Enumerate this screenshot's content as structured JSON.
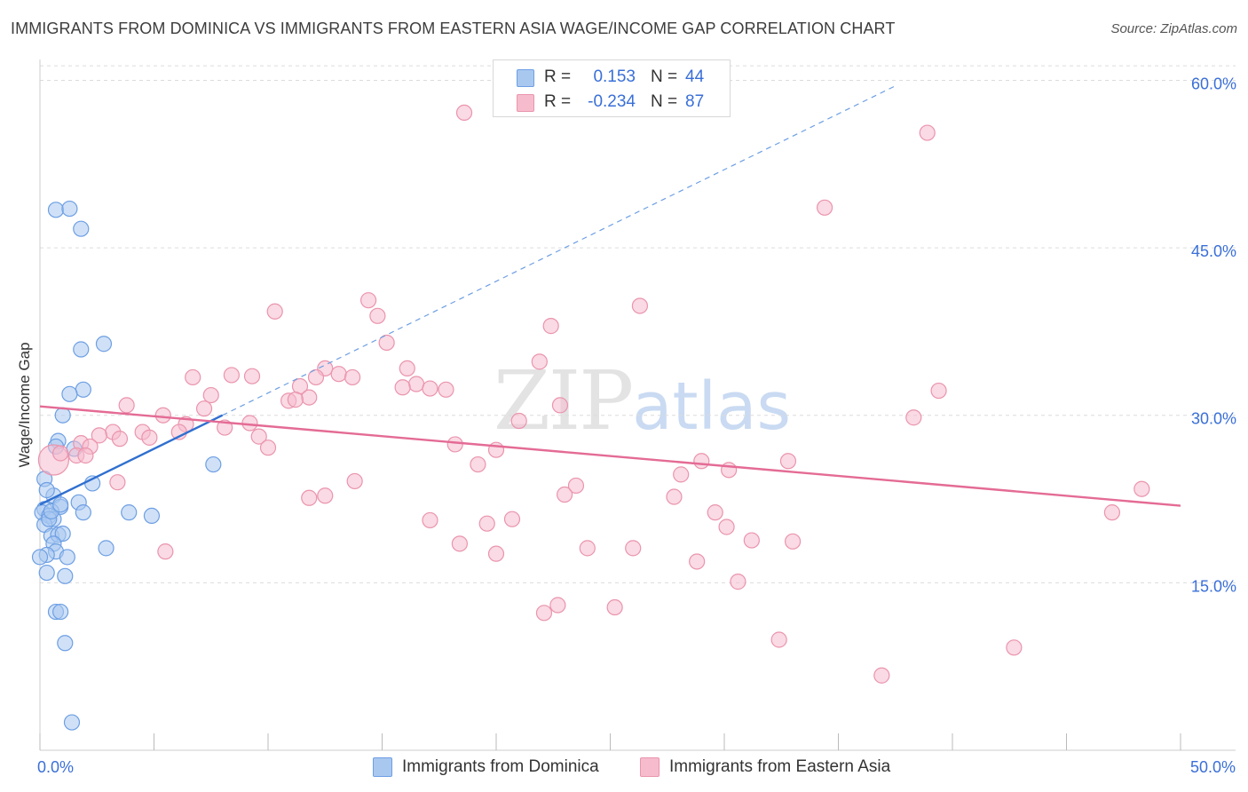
{
  "title": "IMMIGRANTS FROM DOMINICA VS IMMIGRANTS FROM EASTERN ASIA WAGE/INCOME GAP CORRELATION CHART",
  "source": "Source: ZipAtlas.com",
  "watermark": {
    "zip": "ZIP",
    "atlas": "atlas"
  },
  "colors": {
    "blue_fill": "#a9c8f0",
    "blue_stroke": "#6d9fe3",
    "blue_line": "#2f6fd0",
    "pink_fill": "#f6bccd",
    "pink_stroke": "#ea94ad",
    "pink_line": "#e46b95",
    "axis_label": "#3a6fd8",
    "grid": "#dcdcdc"
  },
  "stats": [
    {
      "series": "Immigrants from Dominica",
      "r_label": "R =",
      "r": "0.153",
      "n_label": "N =",
      "n": "44",
      "color": "blue"
    },
    {
      "series": "Immigrants from Eastern Asia",
      "r_label": "R =",
      "r": "-0.234",
      "n_label": "N =",
      "n": "87",
      "color": "pink"
    }
  ],
  "legend": [
    {
      "label": "Immigrants from Dominica",
      "color": "blue"
    },
    {
      "label": "Immigrants from Eastern Asia",
      "color": "pink"
    }
  ],
  "chart_data": {
    "type": "scatter",
    "title": "IMMIGRANTS FROM DOMINICA VS IMMIGRANTS FROM EASTERN ASIA WAGE/INCOME GAP CORRELATION CHART",
    "xlabel": "",
    "ylabel": "Wage/Income Gap",
    "xlim": [
      0,
      50
    ],
    "ylim": [
      0,
      62.5
    ],
    "x_tick_labels": [
      {
        "value": 0,
        "label": "0.0%"
      },
      {
        "value": 50,
        "label": "50.0%"
      }
    ],
    "y_tick_labels": [
      {
        "value": 15,
        "label": "15.0%"
      },
      {
        "value": 30,
        "label": "30.0%"
      },
      {
        "value": 45,
        "label": "45.0%"
      },
      {
        "value": 60,
        "label": "60.0%"
      }
    ],
    "x_minor_ticks": [
      0,
      5,
      10,
      15,
      20,
      25,
      30,
      35,
      40,
      45,
      50
    ],
    "grid": true,
    "series": [
      {
        "name": "Immigrants from Dominica",
        "color": "blue",
        "trend": {
          "x0": 0,
          "y0": 22.0,
          "x1": 8.0,
          "y1": 30.0,
          "dashed_to_x": 37.6,
          "dashed_to_y": 59.6
        },
        "points": [
          [
            0.7,
            48.4
          ],
          [
            1.3,
            48.5
          ],
          [
            1.8,
            46.7
          ],
          [
            2.8,
            36.4
          ],
          [
            1.8,
            35.9
          ],
          [
            1.9,
            32.3
          ],
          [
            1.3,
            31.9
          ],
          [
            1.0,
            30.0
          ],
          [
            0.8,
            27.7
          ],
          [
            0.7,
            27.2
          ],
          [
            1.5,
            27.0
          ],
          [
            7.6,
            25.6
          ],
          [
            0.2,
            24.3
          ],
          [
            2.3,
            23.9
          ],
          [
            0.6,
            22.8
          ],
          [
            0.3,
            23.3
          ],
          [
            1.7,
            22.2
          ],
          [
            0.9,
            21.8
          ],
          [
            0.2,
            21.6
          ],
          [
            0.1,
            21.3
          ],
          [
            0.4,
            21.0
          ],
          [
            0.6,
            20.7
          ],
          [
            1.9,
            21.3
          ],
          [
            3.9,
            21.3
          ],
          [
            4.9,
            21.0
          ],
          [
            0.2,
            20.2
          ],
          [
            0.5,
            19.2
          ],
          [
            0.8,
            19.3
          ],
          [
            1.0,
            19.4
          ],
          [
            0.6,
            18.5
          ],
          [
            2.9,
            18.1
          ],
          [
            0.7,
            17.8
          ],
          [
            0.3,
            17.5
          ],
          [
            0.0,
            17.3
          ],
          [
            1.2,
            17.3
          ],
          [
            0.3,
            15.9
          ],
          [
            1.1,
            15.6
          ],
          [
            0.7,
            12.4
          ],
          [
            0.9,
            12.4
          ],
          [
            1.1,
            9.6
          ],
          [
            1.4,
            2.5
          ],
          [
            0.4,
            20.7
          ],
          [
            0.5,
            21.4
          ],
          [
            0.9,
            22.0
          ]
        ]
      },
      {
        "name": "Immigrants from Eastern Asia",
        "color": "pink",
        "trend": {
          "x0": 0,
          "y0": 30.8,
          "x1": 50,
          "y1": 21.9
        },
        "points": [
          [
            18.6,
            57.1
          ],
          [
            38.9,
            55.3
          ],
          [
            34.4,
            48.6
          ],
          [
            14.4,
            40.3
          ],
          [
            10.3,
            39.3
          ],
          [
            26.3,
            39.8
          ],
          [
            14.8,
            38.9
          ],
          [
            22.4,
            38.0
          ],
          [
            15.2,
            36.5
          ],
          [
            21.9,
            34.8
          ],
          [
            12.5,
            34.2
          ],
          [
            6.7,
            33.4
          ],
          [
            8.4,
            33.6
          ],
          [
            9.3,
            33.5
          ],
          [
            16.1,
            34.2
          ],
          [
            13.1,
            33.7
          ],
          [
            13.7,
            33.4
          ],
          [
            16.5,
            32.8
          ],
          [
            12.1,
            33.4
          ],
          [
            15.9,
            32.5
          ],
          [
            17.1,
            32.4
          ],
          [
            17.8,
            32.3
          ],
          [
            11.4,
            32.6
          ],
          [
            7.5,
            31.8
          ],
          [
            11.8,
            31.6
          ],
          [
            10.9,
            31.3
          ],
          [
            11.2,
            31.4
          ],
          [
            22.8,
            30.9
          ],
          [
            3.8,
            30.9
          ],
          [
            7.2,
            30.6
          ],
          [
            39.4,
            32.2
          ],
          [
            38.3,
            29.8
          ],
          [
            5.4,
            30.0
          ],
          [
            21.0,
            29.5
          ],
          [
            6.4,
            29.2
          ],
          [
            8.1,
            28.9
          ],
          [
            9.2,
            29.3
          ],
          [
            3.2,
            28.5
          ],
          [
            2.6,
            28.2
          ],
          [
            4.5,
            28.5
          ],
          [
            3.5,
            27.9
          ],
          [
            4.8,
            28.0
          ],
          [
            6.1,
            28.5
          ],
          [
            9.6,
            28.1
          ],
          [
            1.8,
            27.5
          ],
          [
            2.2,
            27.2
          ],
          [
            10.0,
            27.1
          ],
          [
            18.2,
            27.4
          ],
          [
            20.0,
            26.9
          ],
          [
            1.6,
            26.4
          ],
          [
            32.8,
            25.9
          ],
          [
            29.0,
            25.9
          ],
          [
            19.2,
            25.6
          ],
          [
            30.2,
            25.1
          ],
          [
            28.1,
            24.7
          ],
          [
            13.8,
            24.1
          ],
          [
            3.4,
            24.0
          ],
          [
            23.5,
            23.7
          ],
          [
            23.0,
            22.9
          ],
          [
            27.8,
            22.7
          ],
          [
            11.8,
            22.6
          ],
          [
            48.3,
            23.4
          ],
          [
            47.0,
            21.3
          ],
          [
            29.6,
            21.3
          ],
          [
            17.1,
            20.6
          ],
          [
            19.6,
            20.3
          ],
          [
            20.7,
            20.7
          ],
          [
            30.1,
            20.0
          ],
          [
            31.2,
            18.8
          ],
          [
            33.0,
            18.7
          ],
          [
            18.4,
            18.5
          ],
          [
            24.0,
            18.1
          ],
          [
            26.0,
            18.1
          ],
          [
            20.0,
            17.6
          ],
          [
            5.5,
            17.8
          ],
          [
            28.8,
            16.9
          ],
          [
            30.6,
            15.1
          ],
          [
            22.7,
            13.0
          ],
          [
            22.1,
            12.3
          ],
          [
            25.2,
            12.8
          ],
          [
            32.4,
            9.9
          ],
          [
            42.7,
            9.2
          ],
          [
            36.9,
            6.7
          ],
          [
            0.6,
            26.0
          ],
          [
            0.9,
            26.6
          ],
          [
            2.0,
            26.4
          ],
          [
            12.5,
            22.8
          ]
        ]
      }
    ]
  }
}
